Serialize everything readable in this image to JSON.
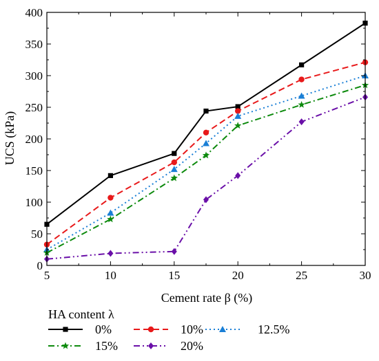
{
  "chart_data": {
    "type": "line",
    "title": "",
    "xlabel": "Cement rate β (%)",
    "ylabel": "UCS (kPa)",
    "xlim": [
      5,
      30
    ],
    "ylim": [
      0,
      400
    ],
    "xticks": [
      5,
      10,
      15,
      20,
      25,
      30
    ],
    "yticks": [
      0,
      50,
      100,
      150,
      200,
      250,
      300,
      350,
      400
    ],
    "grid": false,
    "legend": {
      "title": "HA content λ",
      "placement": "bottom"
    },
    "x": [
      5,
      10,
      15,
      17.5,
      20,
      25,
      30
    ],
    "series": [
      {
        "name": "0%",
        "color": "#000000",
        "dash": "solid",
        "marker": "square",
        "values": [
          65,
          142,
          177,
          244,
          251,
          317,
          383
        ]
      },
      {
        "name": "10%",
        "color": "#e8191a",
        "dash": "dashed",
        "marker": "circle",
        "values": [
          33,
          107,
          163,
          210,
          244,
          294,
          321
        ]
      },
      {
        "name": "12.5%",
        "color": "#1a7fd6",
        "dash": "dotted",
        "marker": "triangle",
        "values": [
          25,
          83,
          152,
          193,
          236,
          268,
          300
        ]
      },
      {
        "name": "15%",
        "color": "#0d8a0d",
        "dash": "dashdot",
        "marker": "star",
        "values": [
          20,
          73,
          138,
          174,
          221,
          254,
          285
        ]
      },
      {
        "name": "20%",
        "color": "#6a0fa8",
        "dash": "dashdotdot",
        "marker": "diamond",
        "values": [
          10,
          19,
          22,
          104,
          142,
          227,
          266
        ]
      }
    ]
  }
}
